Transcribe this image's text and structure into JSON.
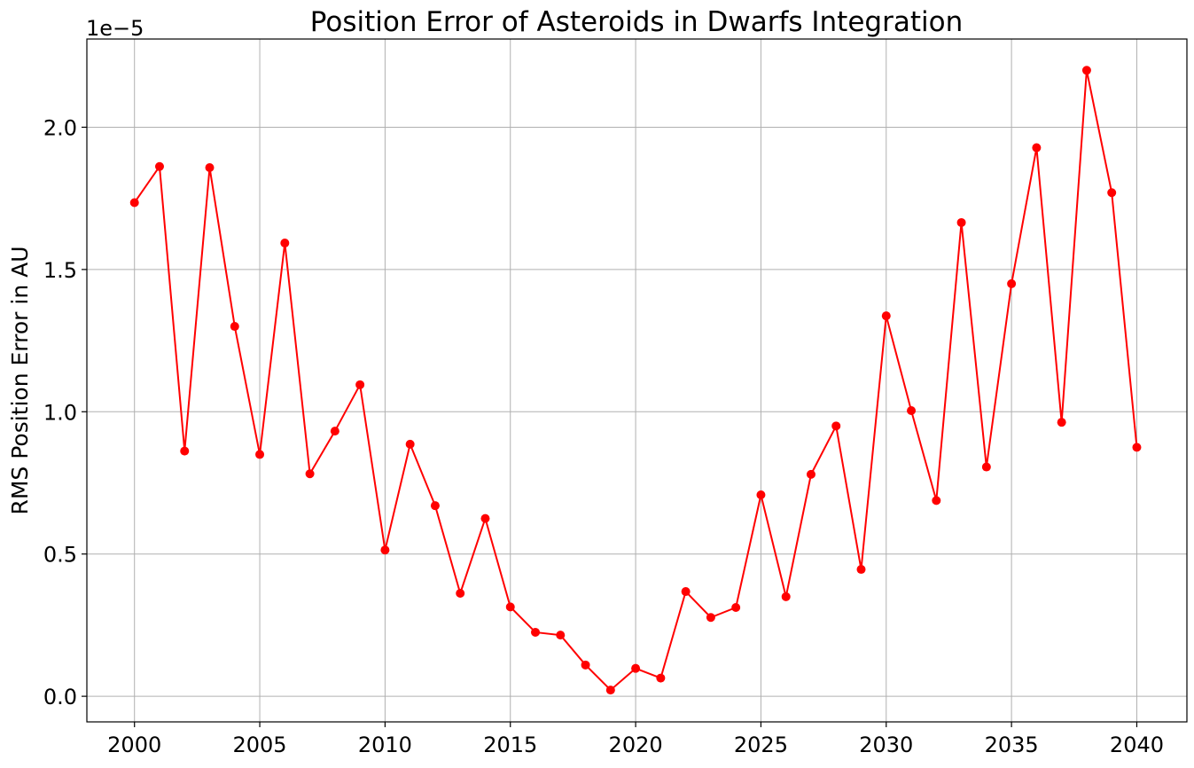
{
  "chart_data": {
    "type": "line",
    "title": "Position Error of Asteroids in Dwarfs Integration",
    "xlabel": "",
    "ylabel": "RMS Position Error in AU",
    "y_offset_label": "1e−5",
    "y_scale_factor": 1e-05,
    "xlim": [
      1998.1,
      2042
    ],
    "ylim": [
      -0.09,
      2.31
    ],
    "x_ticks": [
      2000,
      2005,
      2010,
      2015,
      2020,
      2025,
      2030,
      2035,
      2040
    ],
    "x_tick_labels": [
      "2000",
      "2005",
      "2010",
      "2015",
      "2020",
      "2025",
      "2030",
      "2035",
      "2040"
    ],
    "y_ticks": [
      0.0,
      0.5,
      1.0,
      1.5,
      2.0
    ],
    "y_tick_labels": [
      "0.0",
      "0.5",
      "1.0",
      "1.5",
      "2.0"
    ],
    "grid": true,
    "legend": "none",
    "series": [
      {
        "color": "#ff0000",
        "marker": "circle",
        "x": [
          2000,
          2001,
          2002,
          2003,
          2004,
          2005,
          2006,
          2007,
          2008,
          2009,
          2010,
          2011,
          2012,
          2013,
          2014,
          2015,
          2016,
          2017,
          2018,
          2019,
          2020,
          2021,
          2022,
          2023,
          2024,
          2025,
          2026,
          2027,
          2028,
          2029,
          2030,
          2031,
          2032,
          2033,
          2034,
          2035,
          2036,
          2037,
          2038,
          2039,
          2040
        ],
        "values": [
          1.735,
          1.862,
          0.862,
          1.858,
          1.3,
          0.85,
          1.593,
          0.782,
          0.932,
          1.095,
          0.514,
          0.886,
          0.67,
          0.362,
          0.625,
          0.314,
          0.225,
          0.215,
          0.11,
          0.022,
          0.098,
          0.064,
          0.368,
          0.277,
          0.312,
          0.708,
          0.35,
          0.78,
          0.95,
          0.446,
          1.337,
          1.004,
          0.688,
          1.665,
          0.806,
          1.45,
          1.928,
          0.963,
          2.2,
          1.77,
          0.875
        ]
      }
    ]
  }
}
